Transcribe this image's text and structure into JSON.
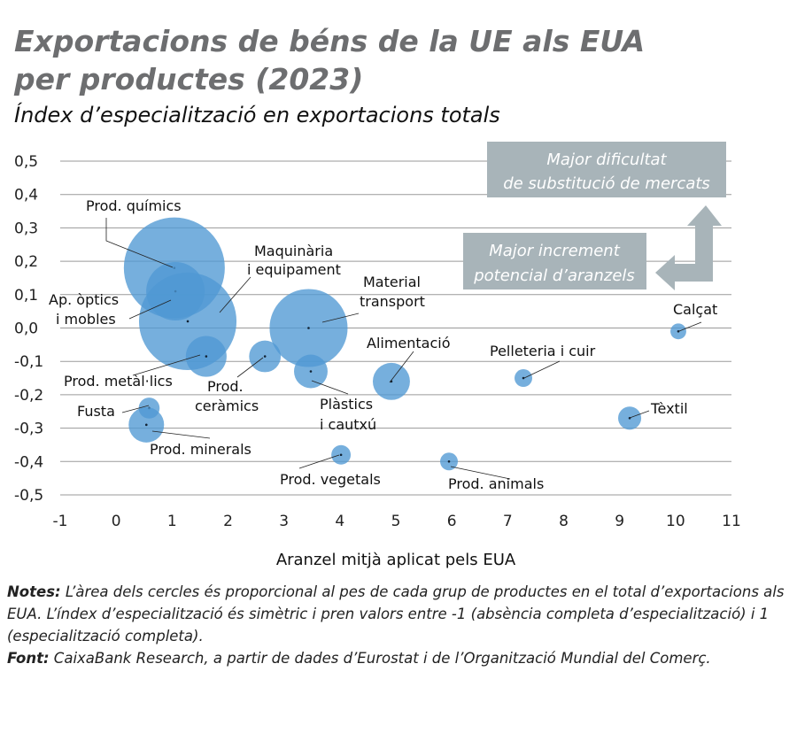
{
  "title_line1": "Exportacions de béns de la UE als EUA",
  "title_line2": "per productes (2023)",
  "subtitle": "Índex d’especialització en exportacions totals",
  "notes": {
    "notes_label": "Notes:",
    "notes_text": " L’àrea dels cercles és proporcional al pes de cada grup de productes en el total d’exportacions als EUA. L’índex d’especialització és simètric i pren valors entre -1 (absència completa d’especialització) i 1 (especialització completa).",
    "source_label": "Font:",
    "source_text": " CaixaBank Research, a partir de dades d’Eurostat i de l’Organització Mundial del Comerç."
  },
  "annotations": {
    "box1_line1": "Major dificultat",
    "box1_line2": "de substitució de mercats",
    "box2_line1": "Major increment",
    "box2_line2": "potencial d’aranzels"
  },
  "colors": {
    "bubble": "#4f99d3",
    "box": "#a8b4b9",
    "title": "#6d6e70"
  },
  "chart_data": {
    "type": "scatter",
    "subtype": "bubble",
    "xlabel": "Aranzel mitjà aplicat pels EUA",
    "ylabel": "",
    "xlim": [
      -1,
      11
    ],
    "ylim": [
      -0.5,
      0.5
    ],
    "xticks": [
      "-1",
      "0",
      "1",
      "2",
      "3",
      "4",
      "5",
      "6",
      "7",
      "8",
      "9",
      "10",
      "11"
    ],
    "yticks": [
      "0,5",
      "0,4",
      "0,3",
      "0,2",
      "0,1",
      "0,0",
      "-0,1",
      "-0,2",
      "-0,3",
      "-0,4",
      "-0,5"
    ],
    "grid": true,
    "points": [
      {
        "name_lines": [
          "Prod. químics"
        ],
        "x": 1.04,
        "y": 0.18,
        "size": 32.5
      },
      {
        "name_lines": [
          "Ap. òptics",
          "i mobles"
        ],
        "x": 1.06,
        "y": 0.11,
        "size": 10.9
      },
      {
        "name_lines": [
          "Maquinària",
          "i equipament"
        ],
        "x": 1.28,
        "y": 0.02,
        "size": 30.3
      },
      {
        "name_lines": [
          "Material",
          "transport"
        ],
        "x": 3.44,
        "y": 0.0,
        "size": 19.4
      },
      {
        "name_lines": [
          "Prod. metàl·lics"
        ],
        "x": 1.61,
        "y": -0.085,
        "size": 5.3
      },
      {
        "name_lines": [
          "Prod.",
          "ceràmics"
        ],
        "x": 2.66,
        "y": -0.085,
        "size": 3.2
      },
      {
        "name_lines": [
          "Plàstics",
          "i cautxú"
        ],
        "x": 3.48,
        "y": -0.13,
        "size": 3.6
      },
      {
        "name_lines": [
          "Alimentació"
        ],
        "x": 4.92,
        "y": -0.16,
        "size": 4.4
      },
      {
        "name_lines": [
          "Fusta"
        ],
        "x": 0.59,
        "y": -0.24,
        "size": 1.4
      },
      {
        "name_lines": [
          "Prod. minerals"
        ],
        "x": 0.54,
        "y": -0.29,
        "size": 4.0
      },
      {
        "name_lines": [
          "Prod. vegetals"
        ],
        "x": 4.02,
        "y": -0.38,
        "size": 1.2
      },
      {
        "name_lines": [
          "Prod. animals"
        ],
        "x": 5.95,
        "y": -0.4,
        "size": 1.0
      },
      {
        "name_lines": [
          "Pelleteria i cuir"
        ],
        "x": 7.28,
        "y": -0.15,
        "size": 1.0
      },
      {
        "name_lines": [
          "Tèxtil"
        ],
        "x": 9.18,
        "y": -0.27,
        "size": 1.7
      },
      {
        "name_lines": [
          "Calçat"
        ],
        "x": 10.05,
        "y": -0.01,
        "size": 0.8
      }
    ]
  }
}
